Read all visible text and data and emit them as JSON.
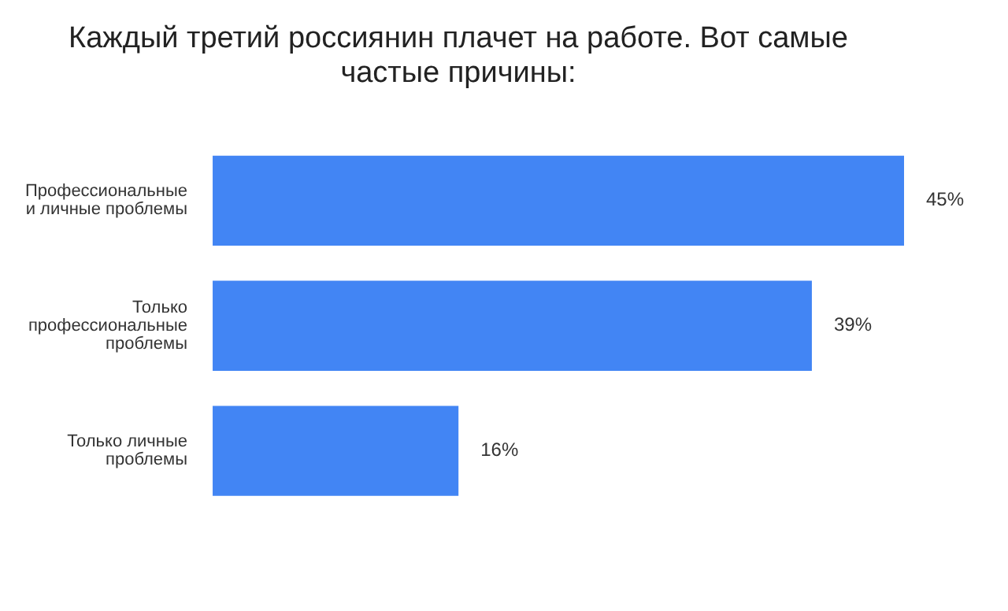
{
  "chart_data": {
    "type": "bar",
    "orientation": "horizontal",
    "title": "Каждый третий россиянин плачет на работе. Вот самые\nчастые причины:",
    "categories": [
      "Профессиональные\nи личные проблемы",
      "Только\nпрофессиональные\nпроблемы",
      "Только личные\nпроблемы"
    ],
    "values": [
      45,
      39,
      16
    ],
    "value_labels": [
      "45%",
      "39%",
      "16%"
    ],
    "color": "#4285f4"
  }
}
